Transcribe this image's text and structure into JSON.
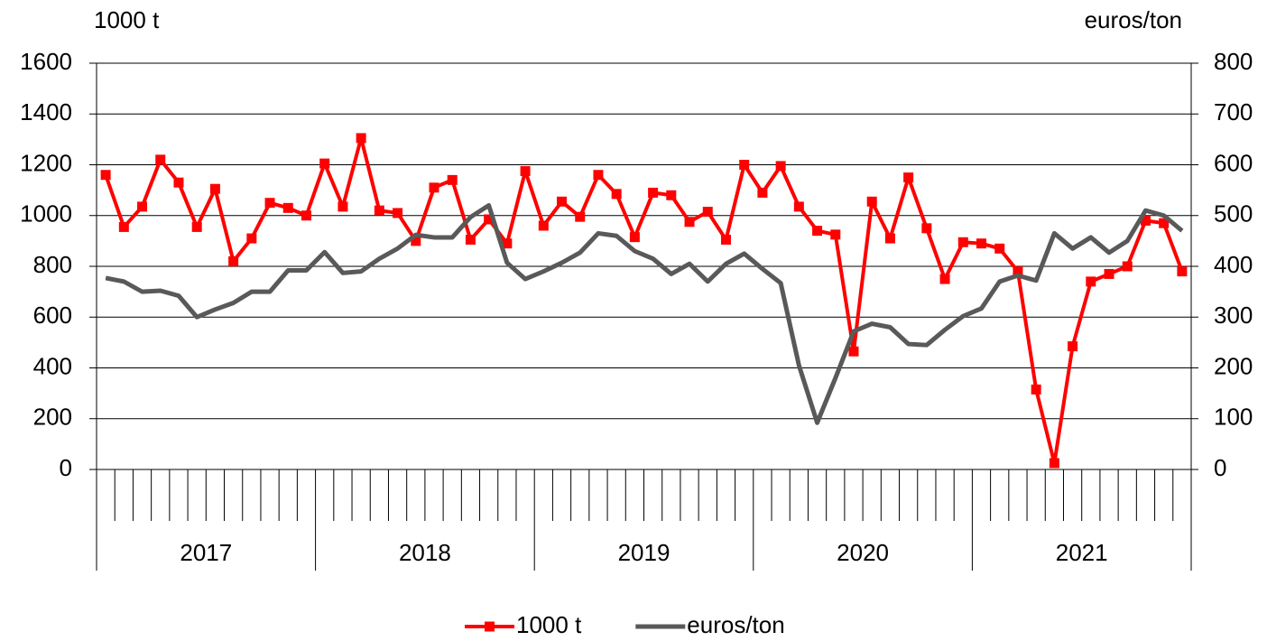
{
  "chart_data": {
    "type": "line",
    "ylabel": "1000 t",
    "y2label": "euros/ton",
    "categories": [
      null,
      null,
      null,
      null,
      null,
      null,
      null,
      null,
      null,
      null,
      null,
      null,
      null,
      null,
      null,
      null,
      null,
      null,
      null,
      null,
      null,
      null,
      null,
      null,
      null,
      null,
      null,
      null,
      null,
      null,
      null,
      null,
      null,
      null,
      null,
      null,
      null,
      null,
      null,
      null,
      null,
      null,
      null,
      null,
      null,
      null,
      null,
      null,
      null,
      null,
      null,
      null,
      null,
      null,
      null,
      null,
      null,
      null,
      null,
      null
    ],
    "x_groups": [
      "2017",
      "2018",
      "2019",
      "2020",
      "2021"
    ],
    "ylim": [
      0,
      1600
    ],
    "yticks": [
      0,
      200,
      400,
      600,
      800,
      1000,
      1200,
      1400,
      1600
    ],
    "y2lim": [
      0,
      800
    ],
    "y2ticks": [
      0,
      100,
      200,
      300,
      400,
      500,
      600,
      700,
      800
    ],
    "grid": true,
    "legend": "bottom",
    "series": [
      {
        "name": "1000 t",
        "color": "#ff0000",
        "marker": "square",
        "values": [
          1160,
          955,
          1035,
          1220,
          1130,
          955,
          1105,
          820,
          910,
          1050,
          1030,
          1000,
          1205,
          1035,
          1305,
          1020,
          1010,
          900,
          1110,
          1140,
          905,
          985,
          890,
          1175,
          960,
          1055,
          995,
          1160,
          1085,
          915,
          1090,
          1080,
          975,
          1015,
          905,
          1200,
          1090,
          1195,
          1035,
          940,
          925,
          465,
          1055,
          910,
          1150,
          950,
          750,
          895,
          890,
          870,
          780,
          315,
          25,
          485,
          740,
          770,
          800,
          980,
          970,
          780
        ]
      },
      {
        "name": "euros/ton",
        "color": "#595959",
        "axis": "y2",
        "values": [
          377,
          370,
          350,
          352,
          342,
          300,
          315,
          328,
          350,
          350,
          392,
          392,
          428,
          387,
          390,
          415,
          435,
          462,
          457,
          457,
          497,
          520,
          407,
          375,
          390,
          407,
          427,
          465,
          460,
          430,
          415,
          385,
          405,
          370,
          405,
          425,
          395,
          367,
          205,
          92,
          180,
          272,
          287,
          280,
          247,
          245,
          275,
          302,
          317,
          370,
          382,
          372,
          465,
          435,
          457,
          427,
          450,
          510,
          500,
          470
        ]
      }
    ]
  }
}
